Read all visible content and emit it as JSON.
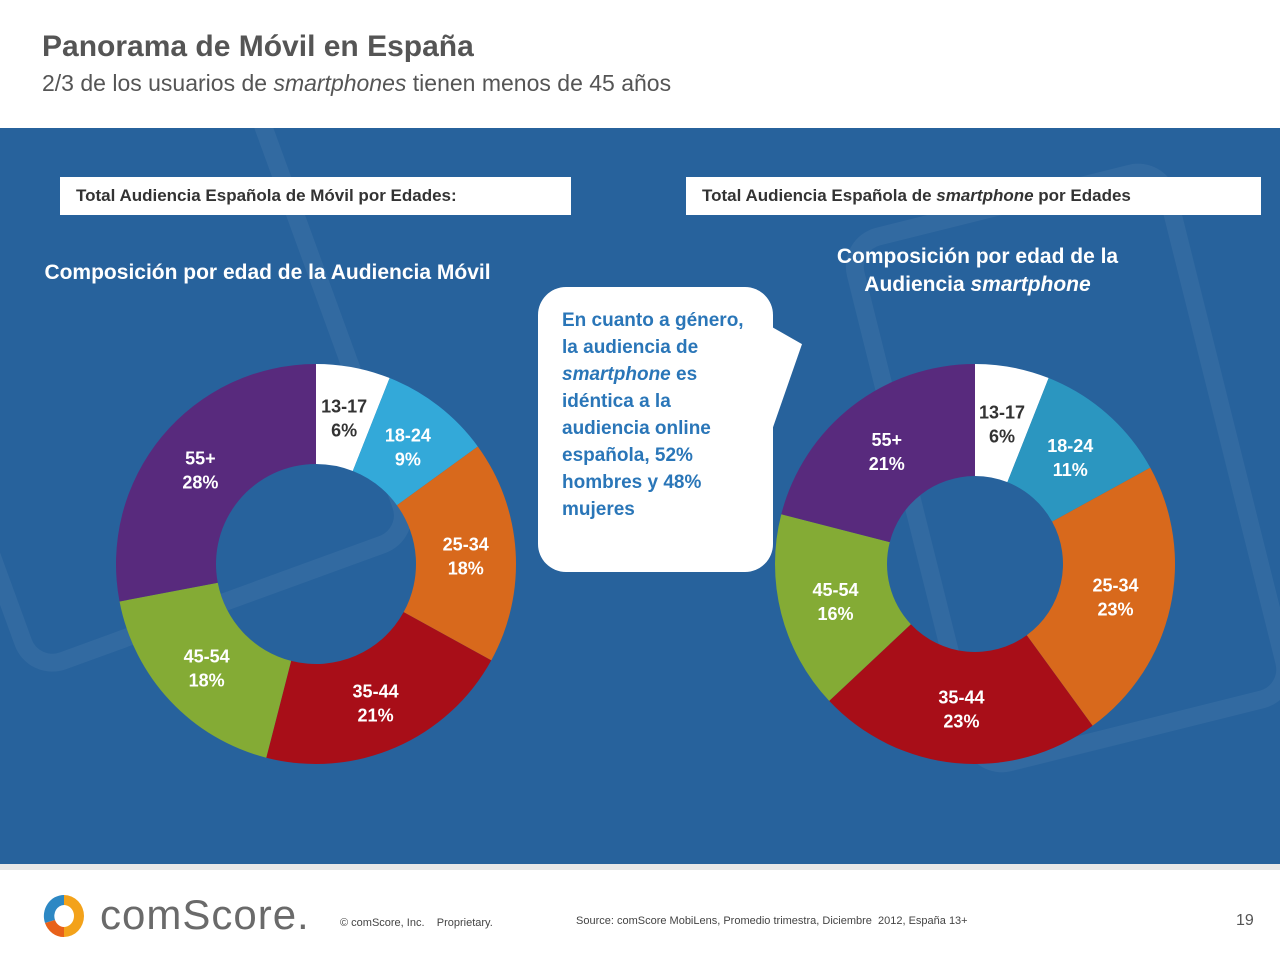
{
  "header": {
    "title": "Panorama de Móvil en España",
    "subtitle_pre": "2/3 de los usuarios de ",
    "subtitle_em": "smartphones",
    "subtitle_post": " tienen menos de 45 años"
  },
  "left_box": {
    "label": "Total Audiencia Española de Móvil por Edades:"
  },
  "right_box": {
    "label_pre": "Total Audiencia Española de ",
    "label_em": "smartphone",
    "label_post": " por Edades"
  },
  "callout": {
    "pre": "En cuanto a género, la audiencia de ",
    "em": "smartphone",
    "post": " es idéntica a la audiencia online española, 52% hombres y 48% mujeres"
  },
  "colors": {
    "13-17": "#ffffff",
    "18-24": "#33a9d9",
    "25-34": "#d8691c",
    "35-44": "#a80e18",
    "45-54": "#84ab35",
    "55+": "#582a7d",
    "panel": "#27629c"
  },
  "chart_data": [
    {
      "type": "pie",
      "donut": true,
      "title": "Composición por edad de la Audiencia Móvil",
      "categories": [
        "13-17",
        "18-24",
        "25-34",
        "35-44",
        "45-54",
        "55+"
      ],
      "values": [
        6,
        9,
        18,
        21,
        18,
        28
      ],
      "unit": "%"
    },
    {
      "type": "pie",
      "donut": true,
      "title_pre": "Composición por edad de la Audiencia ",
      "title_em": "smartphone",
      "categories": [
        "13-17",
        "18-24",
        "25-34",
        "35-44",
        "45-54",
        "55+"
      ],
      "values": [
        6,
        11,
        23,
        23,
        16,
        21
      ],
      "unit": "%"
    }
  ],
  "footer": {
    "logo": "comScore.",
    "copyright": "© comScore, Inc.    Proprietary.",
    "source": "Source: comScore MobiLens, Promedio trimestra, Diciembre  2012, España 13+",
    "page": "19"
  }
}
